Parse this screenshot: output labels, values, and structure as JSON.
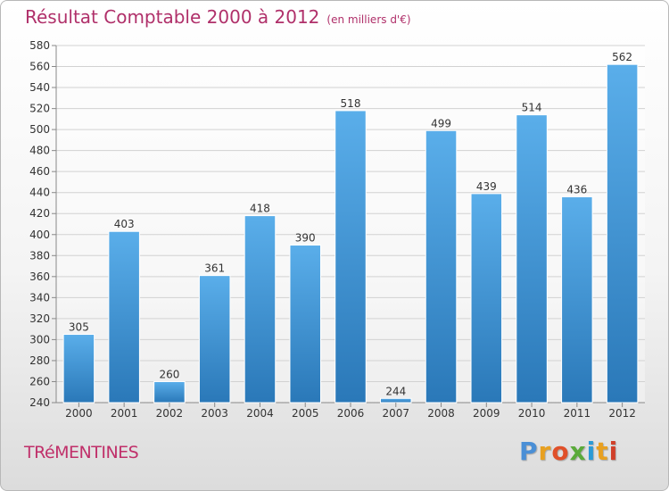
{
  "chart_data": {
    "type": "bar",
    "title": "Résultat Comptable 2000 à 2012",
    "subtitle": "(en milliers d'€)",
    "categories": [
      "2000",
      "2001",
      "2002",
      "2003",
      "2004",
      "2005",
      "2006",
      "2007",
      "2008",
      "2009",
      "2010",
      "2011",
      "2012"
    ],
    "values": [
      305,
      403,
      260,
      361,
      418,
      390,
      518,
      244,
      499,
      439,
      514,
      436,
      562
    ],
    "ylim": [
      240,
      580
    ],
    "yticks": [
      240,
      260,
      280,
      300,
      320,
      340,
      360,
      380,
      400,
      420,
      440,
      460,
      480,
      500,
      520,
      540,
      560,
      580
    ],
    "grid": true,
    "xlabel": "",
    "ylabel": "",
    "bar_color_top": "#5aaeea",
    "bar_color_bottom": "#2a78b8",
    "title_color": "#b0306a"
  },
  "footer": {
    "commune": "TRéMENTINES",
    "logo_letters": [
      {
        "char": "P",
        "color": "#4a8fd6"
      },
      {
        "char": "r",
        "color": "#e8a020"
      },
      {
        "char": "o",
        "color": "#e0502a"
      },
      {
        "char": "x",
        "color": "#5aaa3a"
      },
      {
        "char": "i",
        "color": "#2a9ad6"
      },
      {
        "char": "t",
        "color": "#e8a020"
      },
      {
        "char": "i",
        "color": "#d0402a"
      }
    ]
  }
}
